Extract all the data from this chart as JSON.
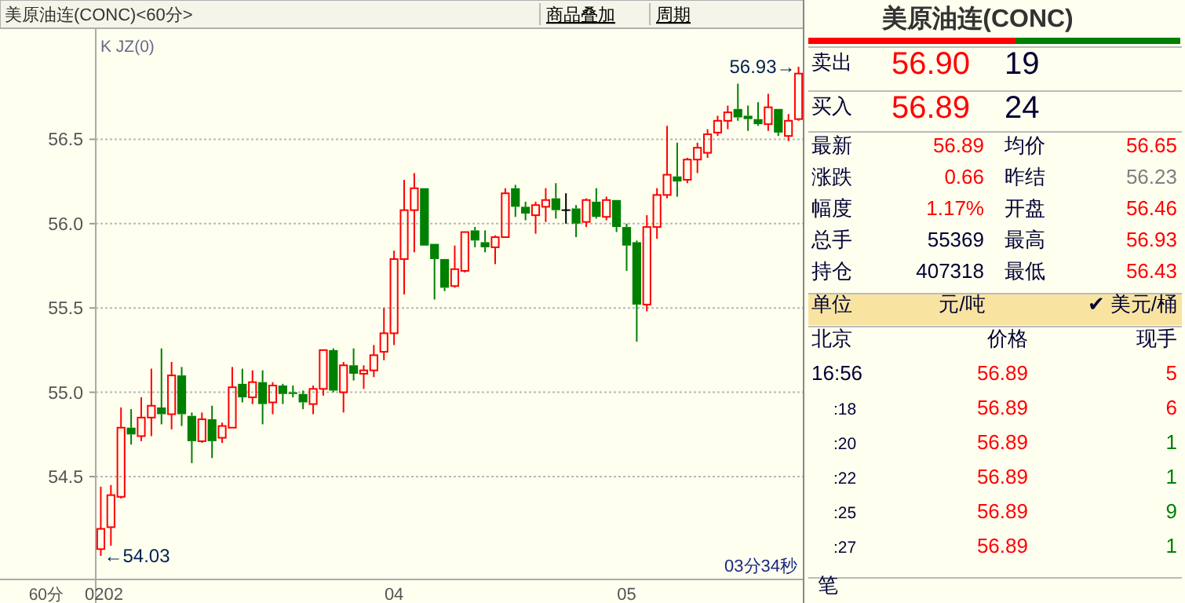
{
  "chart_data": [
    {
      "type": "candlestick",
      "title": "美原油连(CONC)<60分>",
      "categories": [
        "0202",
        null,
        null,
        null,
        null,
        null,
        null,
        null,
        null,
        null,
        null,
        null,
        null,
        null,
        null,
        null,
        null,
        null,
        null,
        null,
        null,
        null,
        null,
        null,
        null,
        null,
        null,
        null,
        null,
        "04",
        null,
        null,
        null,
        null,
        null,
        null,
        null,
        null,
        null,
        null,
        null,
        null,
        null,
        null,
        null,
        null,
        null,
        null,
        null,
        null,
        null,
        null,
        "05",
        null,
        null,
        null,
        null,
        null,
        null,
        null,
        null,
        null,
        null,
        null,
        null,
        null,
        null,
        null,
        null,
        null
      ],
      "ohlc": [
        [
          54.07,
          54.44,
          54.03,
          54.19
        ],
        [
          54.2,
          54.45,
          54.09,
          54.39
        ],
        [
          54.38,
          54.91,
          54.37,
          54.79
        ],
        [
          54.79,
          54.9,
          54.69,
          54.75
        ],
        [
          54.74,
          54.97,
          54.71,
          54.85
        ],
        [
          54.85,
          55.14,
          54.74,
          54.92
        ],
        [
          54.91,
          55.26,
          54.81,
          54.87
        ],
        [
          54.87,
          55.18,
          54.78,
          55.1
        ],
        [
          55.1,
          55.15,
          54.8,
          54.87
        ],
        [
          54.86,
          54.88,
          54.58,
          54.71
        ],
        [
          54.71,
          54.88,
          54.7,
          54.84
        ],
        [
          54.84,
          54.92,
          54.61,
          54.71
        ],
        [
          54.73,
          54.82,
          54.7,
          54.8
        ],
        [
          54.79,
          55.15,
          54.79,
          55.03
        ],
        [
          55.05,
          55.14,
          54.94,
          54.97
        ],
        [
          54.97,
          55.13,
          54.93,
          55.06
        ],
        [
          55.06,
          55.13,
          54.81,
          54.93
        ],
        [
          54.94,
          55.06,
          54.87,
          55.04
        ],
        [
          55.04,
          55.05,
          54.93,
          54.99
        ],
        [
          55.0,
          55.04,
          54.97,
          54.99
        ],
        [
          54.99,
          55.01,
          54.9,
          54.94
        ],
        [
          54.93,
          55.04,
          54.87,
          55.02
        ],
        [
          55.02,
          55.25,
          54.98,
          55.25
        ],
        [
          55.25,
          55.26,
          55.0,
          55.01
        ],
        [
          55.0,
          55.18,
          54.88,
          55.16
        ],
        [
          55.16,
          55.26,
          55.07,
          55.11
        ],
        [
          55.11,
          55.16,
          55.02,
          55.13
        ],
        [
          55.13,
          55.28,
          55.09,
          55.22
        ],
        [
          55.24,
          55.5,
          55.19,
          55.35
        ],
        [
          55.35,
          55.84,
          55.28,
          55.79
        ],
        [
          55.79,
          56.26,
          55.58,
          56.08
        ],
        [
          56.08,
          56.3,
          55.83,
          56.21
        ],
        [
          56.21,
          56.21,
          55.87,
          55.87
        ],
        [
          55.88,
          55.88,
          55.55,
          55.79
        ],
        [
          55.79,
          55.79,
          55.6,
          55.62
        ],
        [
          55.63,
          55.87,
          55.62,
          55.73
        ],
        [
          55.72,
          55.95,
          55.71,
          55.95
        ],
        [
          55.96,
          55.98,
          55.86,
          55.9
        ],
        [
          55.89,
          55.96,
          55.83,
          55.86
        ],
        [
          55.86,
          55.93,
          55.76,
          55.92
        ],
        [
          55.92,
          56.21,
          55.92,
          56.18
        ],
        [
          56.21,
          56.23,
          56.04,
          56.1
        ],
        [
          56.1,
          56.13,
          56.02,
          56.06
        ],
        [
          56.05,
          56.13,
          55.94,
          56.11
        ],
        [
          56.1,
          56.21,
          56.01,
          56.14
        ],
        [
          56.15,
          56.24,
          56.03,
          56.08
        ],
        [
          56.08,
          56.18,
          56.0,
          56.08
        ],
        [
          56.09,
          56.11,
          55.92,
          56.0
        ],
        [
          56.01,
          56.15,
          55.98,
          56.14
        ],
        [
          56.13,
          56.21,
          56.03,
          56.04
        ],
        [
          56.04,
          56.16,
          56.02,
          56.14
        ],
        [
          56.14,
          56.14,
          55.95,
          55.98
        ],
        [
          55.98,
          56.0,
          55.72,
          55.87
        ],
        [
          55.89,
          55.9,
          55.3,
          55.52
        ],
        [
          55.52,
          56.05,
          55.48,
          55.98
        ],
        [
          55.98,
          56.21,
          55.91,
          56.17
        ],
        [
          56.17,
          56.58,
          56.15,
          56.29
        ],
        [
          56.28,
          56.48,
          56.16,
          56.25
        ],
        [
          56.26,
          56.39,
          56.24,
          56.38
        ],
        [
          56.38,
          56.48,
          56.3,
          56.45
        ],
        [
          56.42,
          56.56,
          56.39,
          56.53
        ],
        [
          56.54,
          56.64,
          56.52,
          56.61
        ],
        [
          56.61,
          56.7,
          56.56,
          56.66
        ],
        [
          56.68,
          56.83,
          56.61,
          56.63
        ],
        [
          56.64,
          56.7,
          56.55,
          56.62
        ],
        [
          56.62,
          56.72,
          56.58,
          56.59
        ],
        [
          56.59,
          56.77,
          56.55,
          56.69
        ],
        [
          56.68,
          56.68,
          56.52,
          56.54
        ],
        [
          56.52,
          56.65,
          56.49,
          56.61
        ],
        [
          56.62,
          56.93,
          56.61,
          56.89
        ]
      ],
      "colors": [
        "#ff0000",
        "#ff0000",
        "#ff0000",
        "#008000",
        "#ff0000",
        "#ff0000",
        "#008000",
        "#ff0000",
        "#008000",
        "#008000",
        "#ff0000",
        "#008000",
        "#ff0000",
        "#ff0000",
        "#008000",
        "#ff0000",
        "#008000",
        "#ff0000",
        "#008000",
        "#008000",
        "#008000",
        "#ff0000",
        "#ff0000",
        "#008000",
        "#ff0000",
        "#008000",
        "#ff0000",
        "#ff0000",
        "#ff0000",
        "#ff0000",
        "#ff0000",
        "#ff0000",
        "#008000",
        "#008000",
        "#008000",
        "#ff0000",
        "#ff0000",
        "#008000",
        "#008000",
        "#ff0000",
        "#ff0000",
        "#008000",
        "#008000",
        "#ff0000",
        "#ff0000",
        "#008000",
        "#000000",
        "#008000",
        "#ff0000",
        "#008000",
        "#ff0000",
        "#008000",
        "#008000",
        "#008000",
        "#ff0000",
        "#ff0000",
        "#ff0000",
        "#008000",
        "#ff0000",
        "#ff0000",
        "#ff0000",
        "#ff0000",
        "#ff0000",
        "#008000",
        "#008000",
        "#008000",
        "#ff0000",
        "#008000",
        "#ff0000",
        "#ff0000"
      ],
      "ylim": [
        53.89,
        57.14
      ],
      "yticks": [
        54.5,
        {
          "value": 55,
          "label": "55.0"
        },
        55.5,
        {
          "value": 56,
          "label": "56.0"
        },
        56.5
      ],
      "grid": "y",
      "xlabel": "60分",
      "annotations": [
        {
          "text": "←54.03",
          "x": "0202",
          "y": 54.03
        },
        "56.93→",
        "K JZ(0)",
        "03分34秒",
        "商品叠加",
        "周期"
      ]
    },
    {
      "type": "other",
      "title": "美原油连(CONC)",
      "annotations": [
        "卖出",
        "56.90",
        "19",
        "买入",
        "56.89",
        "24",
        "最新",
        "56.89",
        "均价",
        "56.65",
        "涨跌",
        "0.66",
        "昨结",
        "56.23",
        "幅度",
        "1.17%",
        "开盘",
        "56.46",
        "总手",
        "55369",
        "最高",
        "56.93",
        "持仓",
        "407318",
        "最低",
        "56.43",
        "单位",
        "元/吨",
        "✔ 美元/桶",
        "北京",
        "价格",
        "现手",
        "16:56",
        "56.89",
        "5",
        ":18",
        "56.89",
        "6",
        ":20",
        "56.89",
        "1",
        ":22",
        "56.89",
        "1",
        ":25",
        "56.89",
        "9",
        ":27",
        "56.89",
        "1",
        "笔"
      ],
      "colors": [
        "#000033",
        "#ff0000",
        "#000033",
        "#000033",
        "#ff0000",
        "#000033",
        "#000033",
        "#ff0000",
        "#000033",
        "#ff0000",
        "#000033",
        "#ff0000",
        "#000033",
        "#808080",
        "#000033",
        "#ff0000",
        "#000033",
        "#ff0000",
        "#000033",
        "#000033",
        "#000033",
        "#ff0000",
        "#000033",
        "#000033",
        "#000033",
        "#ff0000",
        "#000033",
        "#000033",
        "#000033",
        "#000033",
        "#000033",
        "#000033",
        "#000033",
        "#ff0000",
        "#ff0000",
        "#000033",
        "#ff0000",
        "#ff0000",
        "#000033",
        "#ff0000",
        "#008000",
        "#000033",
        "#ff0000",
        "#008000",
        "#000033",
        "#ff0000",
        "#008000",
        "#000033",
        "#ff0000",
        "#008000",
        "#000033"
      ]
    }
  ]
}
